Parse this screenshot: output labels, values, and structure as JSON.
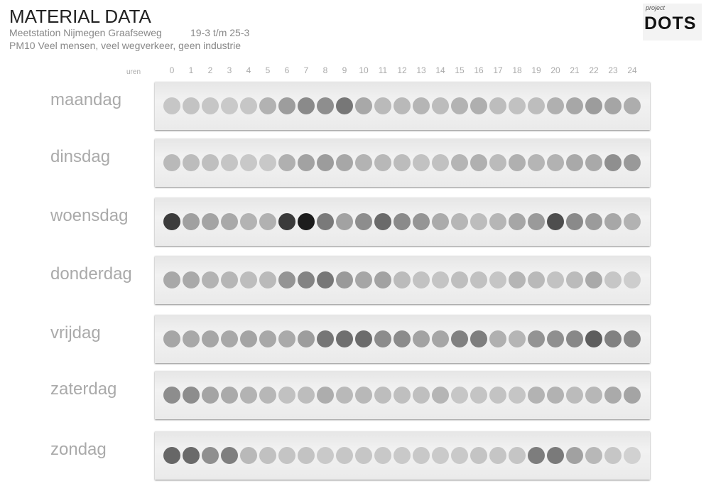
{
  "header": {
    "title": "MATERIAL DATA",
    "station": "Meetstation Nijmegen Graafseweg",
    "dates": "19-3 t/m 25-3",
    "description": "PM10 Veel mensen, veel wegverkeer, geen industrie"
  },
  "logo": {
    "small": "project",
    "big": "DOTS"
  },
  "hours_label": "uren",
  "hours": [
    0,
    1,
    2,
    3,
    4,
    5,
    6,
    7,
    8,
    9,
    10,
    11,
    12,
    13,
    14,
    15,
    16,
    17,
    18,
    19,
    20,
    21,
    22,
    23,
    24
  ],
  "days": [
    {
      "name": "maandag",
      "dots": [
        "#c6c6c6",
        "#c3c3c3",
        "#c6c6c6",
        "#c9c9c9",
        "#c6c6c6",
        "#b2b2b2",
        "#9d9d9d",
        "#8a8a8a",
        "#8e8e8e",
        "#777777",
        "#a8a8a8",
        "#bababa",
        "#b9b9b9",
        "#b5b5b5",
        "#bcbcbc",
        "#b3b3b3",
        "#afafaf",
        "#bdbdbd",
        "#c1c1c1",
        "#bdbdbd",
        "#b0b0b0",
        "#a7a7a7",
        "#9c9c9c",
        "#a5a5a5",
        "#adadad"
      ]
    },
    {
      "name": "dinsdag",
      "dots": [
        "#b9b9b9",
        "#bcbcbc",
        "#bfbfbf",
        "#c5c5c5",
        "#c8c8c8",
        "#c8c8c8",
        "#b0b0b0",
        "#a2a2a2",
        "#9c9c9c",
        "#a7a7a7",
        "#b3b3b3",
        "#b8b8b8",
        "#bcbcbc",
        "#c2c2c2",
        "#c1c1c1",
        "#b5b5b5",
        "#b0b0b0",
        "#bbbbbb",
        "#b0b0b0",
        "#b5b5b5",
        "#b2b2b2",
        "#a9a9a9",
        "#a9a9a9",
        "#8f8f8f",
        "#999999"
      ]
    },
    {
      "name": "woensdag",
      "dots": [
        "#3c3c3c",
        "#a0a0a0",
        "#a4a4a4",
        "#a9a9a9",
        "#b3b3b3",
        "#b1b1b1",
        "#3a3a3a",
        "#1c1c1c",
        "#7a7a7a",
        "#a2a2a2",
        "#8d8d8d",
        "#6a6a6a",
        "#8a8a8a",
        "#959595",
        "#ababab",
        "#b6b6b6",
        "#bdbdbd",
        "#b6b6b6",
        "#a6a6a6",
        "#9a9a9a",
        "#4e4e4e",
        "#8a8a8a",
        "#9b9b9b",
        "#a7a7a7",
        "#b2b2b2"
      ]
    },
    {
      "name": "donderdag",
      "dots": [
        "#a8a8a8",
        "#a9a9a9",
        "#b3b3b3",
        "#b6b6b6",
        "#bdbdbd",
        "#bababa",
        "#949494",
        "#838383",
        "#777777",
        "#9a9a9a",
        "#a6a6a6",
        "#a2a2a2",
        "#bbbbbb",
        "#c2c2c2",
        "#c4c4c4",
        "#bebebe",
        "#c1c1c1",
        "#c5c5c5",
        "#b5b5b5",
        "#b9b9b9",
        "#c2c2c2",
        "#bbbbbb",
        "#a9a9a9",
        "#c6c6c6",
        "#cdcdcd"
      ]
    },
    {
      "name": "vrijdag",
      "dots": [
        "#a6a6a6",
        "#a8a8a8",
        "#a6a6a6",
        "#a8a8a8",
        "#a4a4a4",
        "#a8a8a8",
        "#aaaaaa",
        "#9d9d9d",
        "#767676",
        "#6f6f6f",
        "#6c6c6c",
        "#8c8c8c",
        "#8b8b8b",
        "#a3a3a3",
        "#a6a6a6",
        "#818181",
        "#7e7e7e",
        "#b0b0b0",
        "#b5b5b5",
        "#939393",
        "#8f8f8f",
        "#888888",
        "#5e5e5e",
        "#818181",
        "#898989"
      ]
    },
    {
      "name": "zaterdag",
      "dots": [
        "#8d8d8d",
        "#8d8d8d",
        "#a4a4a4",
        "#aaaaaa",
        "#b3b3b3",
        "#b7b7b7",
        "#c1c1c1",
        "#bdbdbd",
        "#adadad",
        "#b9b9b9",
        "#b8b8b8",
        "#bdbdbd",
        "#bfbfbf",
        "#bfbfbf",
        "#b5b5b5",
        "#c6c6c6",
        "#c4c4c4",
        "#c3c3c3",
        "#c5c5c5",
        "#b3b3b3",
        "#b2b2b2",
        "#bbbbbb",
        "#b7b7b7",
        "#aaaaaa",
        "#a4a4a4"
      ]
    },
    {
      "name": "zondag",
      "dots": [
        "#676767",
        "#6a6a6a",
        "#8f8f8f",
        "#7f7f7f",
        "#b9b9b9",
        "#c1c1c1",
        "#c4c4c4",
        "#c3c3c3",
        "#c9c9c9",
        "#c6c6c6",
        "#c6c6c6",
        "#c8c8c8",
        "#c9c9c9",
        "#c8c8c8",
        "#cacaca",
        "#c9c9c9",
        "#c4c4c4",
        "#c5c5c5",
        "#c5c5c5",
        "#7d7d7d",
        "#7a7a7a",
        "#a1a1a1",
        "#b8b8b8",
        "#c6c6c6",
        "#d1d1d1"
      ]
    }
  ]
}
